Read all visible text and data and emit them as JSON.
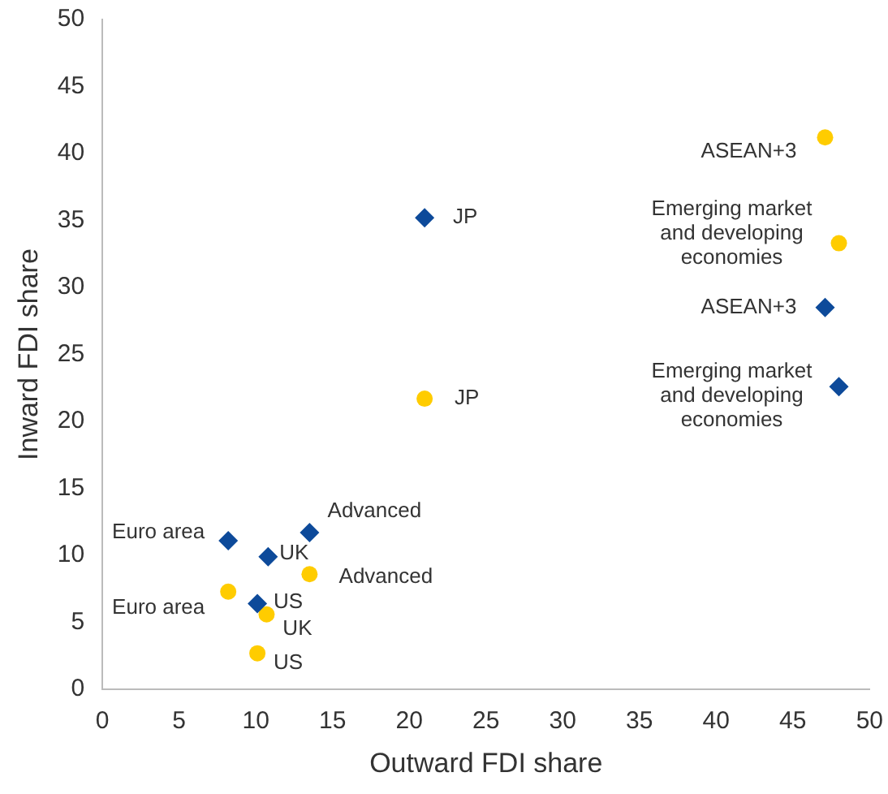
{
  "chart_data": {
    "type": "scatter",
    "xlabel": "Outward FDI share",
    "ylabel": "Inward FDI share",
    "xlim": [
      0,
      50
    ],
    "xticks": [
      0,
      5,
      10,
      15,
      20,
      25,
      30,
      35,
      40,
      45,
      50
    ],
    "ylim": [
      0,
      50
    ],
    "yticks": [
      0,
      5,
      10,
      15,
      20,
      25,
      30,
      35,
      40,
      45,
      50
    ],
    "grid": false,
    "legend": false,
    "series": [
      {
        "color": "#0d4a9a",
        "marker": "diamond",
        "x": [
          21,
          47.1,
          48,
          13.5,
          8.2,
          10.8,
          10.1
        ],
        "values": [
          35.2,
          28.5,
          22.6,
          11.7,
          11.1,
          9.9,
          6.4
        ]
      },
      {
        "color": "#ffcc00",
        "marker": "circle",
        "x": [
          47.1,
          48,
          21,
          13.5,
          8.2,
          10.7,
          10.1
        ],
        "values": [
          41.2,
          33.3,
          21.7,
          8.6,
          7.3,
          5.6,
          2.7
        ]
      }
    ],
    "annotations": [
      {
        "text": "JP",
        "x": 21,
        "y": 35.2
      },
      {
        "text": "ASEAN+3",
        "x": 47.1,
        "y": 28.5
      },
      {
        "text": "Emerging market\nand developing\neconomies",
        "x": 48,
        "y": 22.6
      },
      {
        "text": "Advanced",
        "x": 13.5,
        "y": 11.7
      },
      {
        "text": "Euro area",
        "x": 8.2,
        "y": 11.1
      },
      {
        "text": "UK",
        "x": 10.8,
        "y": 9.9
      },
      {
        "text": "US",
        "x": 10.1,
        "y": 6.4
      },
      {
        "text": "ASEAN+3",
        "x": 47.1,
        "y": 41.2
      },
      {
        "text": "Emerging market\nand developing\neconomies",
        "x": 48,
        "y": 33.3
      },
      {
        "text": "JP",
        "x": 21,
        "y": 21.7
      },
      {
        "text": "Advanced",
        "x": 13.5,
        "y": 8.6
      },
      {
        "text": "Euro area",
        "x": 8.2,
        "y": 7.3
      },
      {
        "text": "UK",
        "x": 10.7,
        "y": 5.6
      },
      {
        "text": "US",
        "x": 10.1,
        "y": 2.7
      }
    ]
  }
}
